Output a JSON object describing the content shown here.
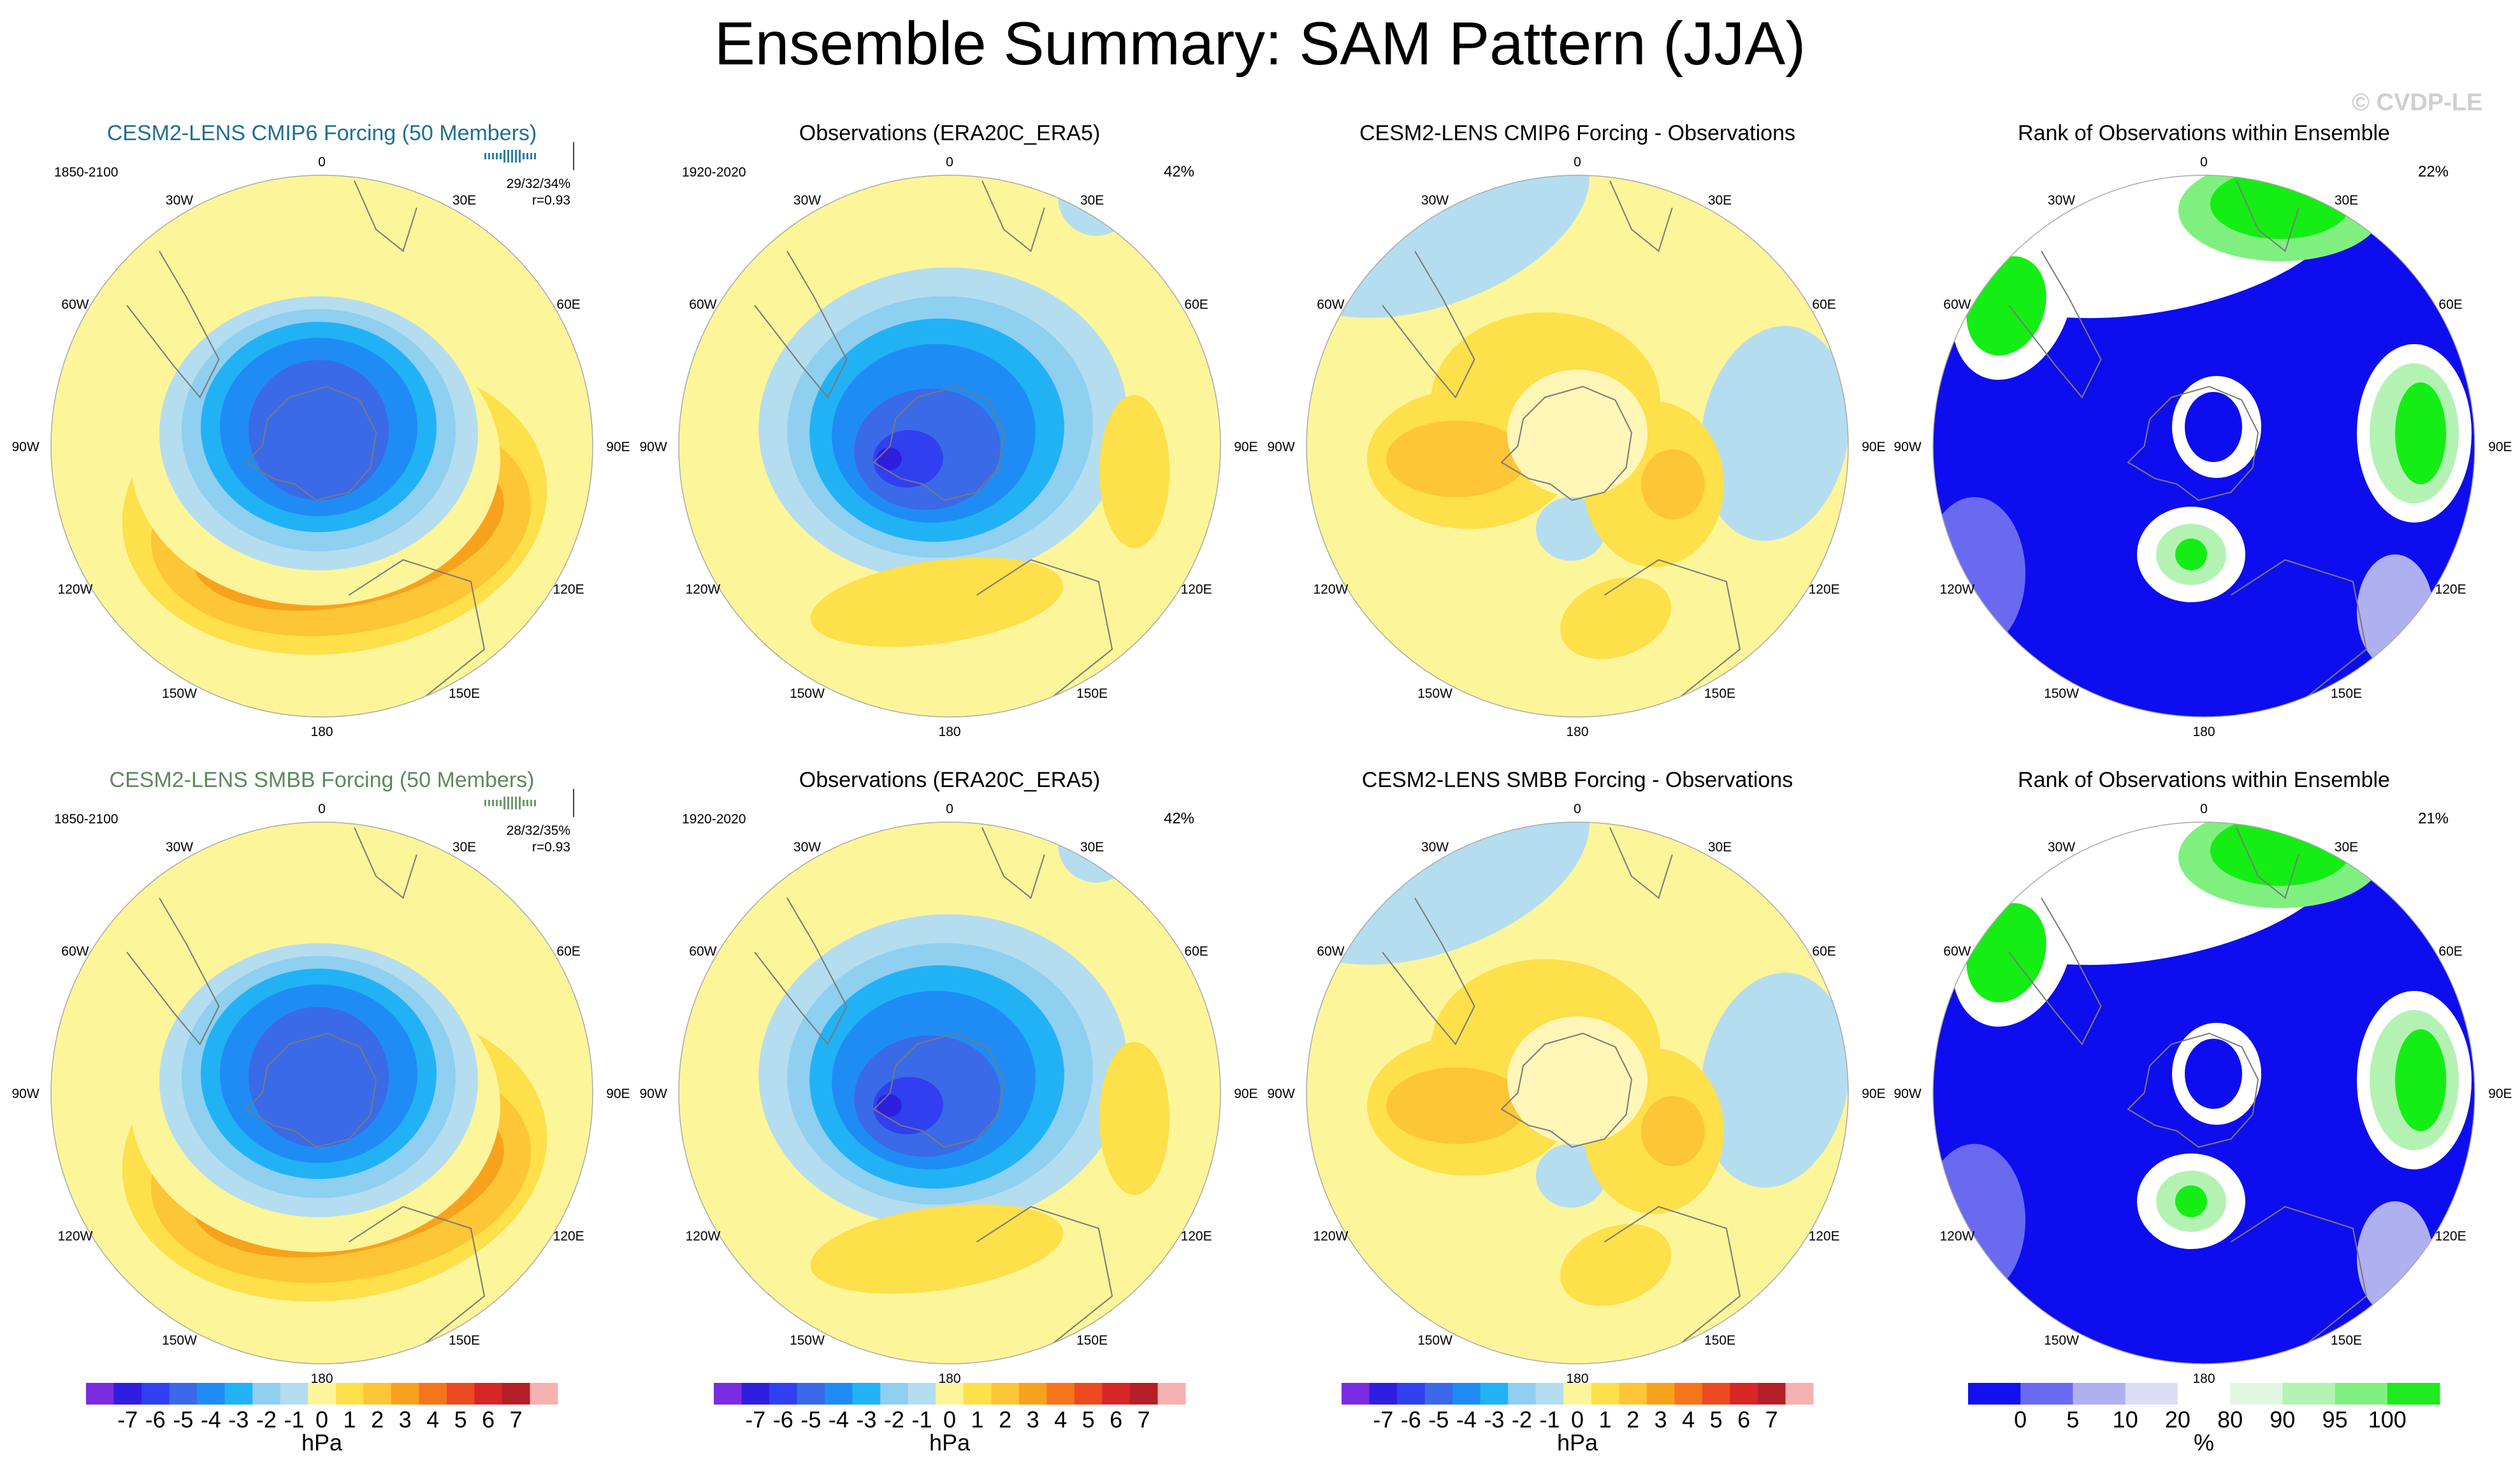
{
  "title": "Ensemble Summary: SAM Pattern (JJA)",
  "watermark": "© CVDP-LE",
  "rows": [
    {
      "panels": [
        {
          "title": "CESM2-LENS CMIP6 Forcing (50 Members)",
          "title_color": "#1f6f93",
          "kind": "ensemble",
          "period": "1850-2100",
          "stats": "29/32/34%",
          "corr": "r=0.93",
          "bar_color": "#2b7fa4"
        },
        {
          "title": "Observations (ERA20C_ERA5)",
          "title_color": "#000000",
          "kind": "obs",
          "period": "1920-2020",
          "pct": "42%"
        },
        {
          "title": "CESM2-LENS CMIP6 Forcing - Observations",
          "title_color": "#000000",
          "kind": "diff"
        },
        {
          "title": "Rank of Observations within Ensemble",
          "title_color": "#000000",
          "kind": "rank",
          "pct": "22%"
        }
      ]
    },
    {
      "panels": [
        {
          "title": "CESM2-LENS SMBB Forcing (50 Members)",
          "title_color": "#5b8a5b",
          "kind": "ensemble",
          "period": "1850-2100",
          "stats": "28/32/35%",
          "corr": "r=0.93",
          "bar_color": "#6b9a6b"
        },
        {
          "title": "Observations (ERA20C_ERA5)",
          "title_color": "#000000",
          "kind": "obs",
          "period": "1920-2020",
          "pct": "42%"
        },
        {
          "title": "CESM2-LENS SMBB Forcing - Observations",
          "title_color": "#000000",
          "kind": "diff"
        },
        {
          "title": "Rank of Observations within Ensemble",
          "title_color": "#000000",
          "kind": "rank",
          "pct": "21%"
        }
      ]
    }
  ],
  "lon_labels": [
    "0",
    "30E",
    "60E",
    "90E",
    "120E",
    "150E",
    "180",
    "150W",
    "120W",
    "90W",
    "60W",
    "30W"
  ],
  "colorbars": [
    {
      "unit": "hPa",
      "labels": [
        "-7",
        "-6",
        "-5",
        "-4",
        "-3",
        "-2",
        "-1",
        "0",
        "1",
        "2",
        "3",
        "4",
        "5",
        "6",
        "7"
      ],
      "colors": [
        "#7b2be0",
        "#2f1ee0",
        "#3040f0",
        "#3a6ae8",
        "#1f8cf5",
        "#21b2f5",
        "#8fcff0",
        "#b4ddf0",
        "#fdf59a",
        "#fde04a",
        "#fdc636",
        "#f7a21d",
        "#f5751c",
        "#ec4a20",
        "#d72626",
        "#b51f27",
        "#f6b1b1"
      ]
    },
    {
      "unit": "hPa",
      "labels": [
        "-7",
        "-6",
        "-5",
        "-4",
        "-3",
        "-2",
        "-1",
        "0",
        "1",
        "2",
        "3",
        "4",
        "5",
        "6",
        "7"
      ],
      "colors": [
        "#7b2be0",
        "#2f1ee0",
        "#3040f0",
        "#3a6ae8",
        "#1f8cf5",
        "#21b2f5",
        "#8fcff0",
        "#b4ddf0",
        "#fdf59a",
        "#fde04a",
        "#fdc636",
        "#f7a21d",
        "#f5751c",
        "#ec4a20",
        "#d72626",
        "#b51f27",
        "#f6b1b1"
      ]
    },
    {
      "unit": "hPa",
      "labels": [
        "-7",
        "-6",
        "-5",
        "-4",
        "-3",
        "-2",
        "-1",
        "0",
        "1",
        "2",
        "3",
        "4",
        "5",
        "6",
        "7"
      ],
      "colors": [
        "#7b2be0",
        "#2f1ee0",
        "#3040f0",
        "#3a6ae8",
        "#1f8cf5",
        "#21b2f5",
        "#8fcff0",
        "#b4ddf0",
        "#fdf59a",
        "#fde04a",
        "#fdc636",
        "#f7a21d",
        "#f5751c",
        "#ec4a20",
        "#d72626",
        "#b51f27",
        "#f6b1b1"
      ]
    },
    {
      "unit": "%",
      "labels": [
        "0",
        "5",
        "10",
        "20",
        "80",
        "90",
        "95",
        "100"
      ],
      "colors": [
        "#1212f0",
        "#6a6af0",
        "#aeb0f0",
        "#dcdcf5",
        "#ffffff",
        "#e2f7e2",
        "#b4f2b4",
        "#7ff07f",
        "#1eea1e"
      ]
    }
  ],
  "palette": {
    "land_outline": "#7a7a7a",
    "rank_blue": "#0d0df0",
    "rank_green": "#14ee14"
  }
}
